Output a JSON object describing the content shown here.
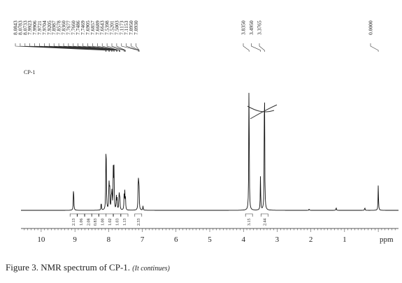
{
  "chart_data": {
    "type": "line",
    "sample_label": "CP-1",
    "xlabel": "ppm",
    "xlim": [
      10.6,
      -0.6
    ],
    "x_ticks": [
      "10",
      "9",
      "8",
      "7",
      "6",
      "5",
      "4",
      "3",
      "2",
      "1"
    ],
    "peak_labels": [
      "8.0843",
      "8.0783",
      "8.0733",
      "7.9923",
      "7.9906",
      "7.9721",
      "7.9704",
      "7.9205",
      "7.8987",
      "7.8578",
      "7.8360",
      "7.7677",
      "7.7660",
      "7.7486",
      "7.7469",
      "7.6905",
      "7.6857",
      "7.6689",
      "7.6643",
      "7.5398",
      "7.5201",
      "7.5003",
      "7.1173",
      "7.1153",
      "7.0950",
      "7.0930",
      "3.8350",
      "3.4950",
      "3.3765",
      "0.0000"
    ],
    "peaks": [
      {
        "ppm": 9.04,
        "height": 0.18
      },
      {
        "ppm": 8.22,
        "height": 0.06
      },
      {
        "ppm": 8.08,
        "height": 0.3
      },
      {
        "ppm": 8.07,
        "height": 0.25
      },
      {
        "ppm": 7.99,
        "height": 0.2
      },
      {
        "ppm": 7.97,
        "height": 0.19
      },
      {
        "ppm": 7.92,
        "height": 0.11
      },
      {
        "ppm": 7.9,
        "height": 0.14
      },
      {
        "ppm": 7.86,
        "height": 0.3
      },
      {
        "ppm": 7.84,
        "height": 0.28
      },
      {
        "ppm": 7.77,
        "height": 0.09
      },
      {
        "ppm": 7.75,
        "height": 0.08
      },
      {
        "ppm": 7.69,
        "height": 0.13
      },
      {
        "ppm": 7.67,
        "height": 0.11
      },
      {
        "ppm": 7.54,
        "height": 0.1
      },
      {
        "ppm": 7.52,
        "height": 0.12
      },
      {
        "ppm": 7.5,
        "height": 0.08
      },
      {
        "ppm": 7.12,
        "height": 0.25
      },
      {
        "ppm": 7.1,
        "height": 0.22
      },
      {
        "ppm": 6.98,
        "height": 0.03
      },
      {
        "ppm": 3.835,
        "height": 1.0
      },
      {
        "ppm": 3.495,
        "height": 0.24
      },
      {
        "ppm": 3.3765,
        "height": 1.04
      },
      {
        "ppm": 2.05,
        "height": 0.01
      },
      {
        "ppm": 1.25,
        "height": 0.02
      },
      {
        "ppm": 0.4,
        "height": 0.02
      },
      {
        "ppm": 0.0,
        "height": 0.18
      }
    ],
    "integrals": [
      {
        "ppm": 9.04,
        "value": "2.13"
      },
      {
        "ppm": 8.82,
        "value": "1.06"
      },
      {
        "ppm": 8.6,
        "value": "2.08"
      },
      {
        "ppm": 8.4,
        "value": "0.83"
      },
      {
        "ppm": 8.18,
        "value": "1.00"
      },
      {
        "ppm": 7.97,
        "value": "1.02"
      },
      {
        "ppm": 7.75,
        "value": "1.03"
      },
      {
        "ppm": 7.53,
        "value": "1.13"
      },
      {
        "ppm": 7.12,
        "value": "2.33"
      },
      {
        "ppm": 3.835,
        "value": "3.15"
      },
      {
        "ppm": 3.3765,
        "value": "2.44"
      }
    ]
  },
  "caption": {
    "text": "Figure 3. NMR spectrum of CP-1. ",
    "note": "(It continues)"
  }
}
